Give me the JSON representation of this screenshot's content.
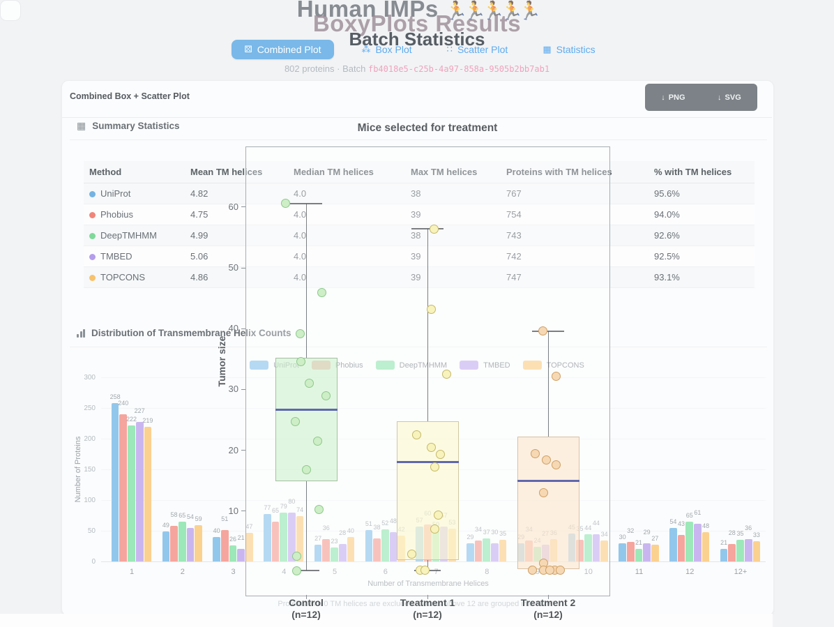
{
  "page": {
    "overlay_title": "Human IMPs",
    "runners": "🏃🏃🏃🏃🏃",
    "title": "BoxyPlots Results",
    "subtitle": "Batch Statistics"
  },
  "tabs": [
    {
      "label": "Combined Plot",
      "icon": "⚄",
      "active": true
    },
    {
      "label": "Box Plot",
      "icon": "⁂",
      "active": false
    },
    {
      "label": "Scatter Plot",
      "icon": "∷",
      "active": false
    },
    {
      "label": "Statistics",
      "icon": "▦",
      "active": false
    }
  ],
  "meta": {
    "proteins": "802 proteins",
    "dot": "·",
    "batch_label": "Batch",
    "batch_id": "fb4018e5-c25b-4a97-858a-9505b2bb7ab1"
  },
  "panel": {
    "title": "Combined Box + Scatter Plot",
    "buttons": [
      {
        "label": "PNG",
        "icon": "↓"
      },
      {
        "label": "SVG",
        "icon": "↓"
      }
    ]
  },
  "summary": {
    "heading": "Summary Statistics",
    "icon": "▦",
    "columns": [
      "Method",
      "Mean TM helices",
      "Median TM helices",
      "Max TM helices",
      "Proteins with TM helices",
      "% with TM helices"
    ],
    "rows": [
      {
        "method": "UniProt",
        "color": "#74b3e3",
        "mean": "4.82",
        "median": "4.0",
        "max": "38",
        "proteins": "767",
        "pct": "95.6%"
      },
      {
        "method": "Phobius",
        "color": "#f0857a",
        "mean": "4.75",
        "median": "4.0",
        "max": "39",
        "proteins": "754",
        "pct": "94.0%"
      },
      {
        "method": "DeepTMHMM",
        "color": "#7fd99a",
        "mean": "4.99",
        "median": "4.0",
        "max": "38",
        "proteins": "743",
        "pct": "92.6%"
      },
      {
        "method": "TMBED",
        "color": "#b49dea",
        "mean": "5.06",
        "median": "4.0",
        "max": "39",
        "proteins": "742",
        "pct": "92.5%"
      },
      {
        "method": "TOPCONS",
        "color": "#f7c26b",
        "mean": "4.86",
        "median": "4.0",
        "max": "39",
        "proteins": "747",
        "pct": "93.1%"
      }
    ]
  },
  "distribution": {
    "heading": "Distribution of Transmembrane Helix Counts"
  },
  "chart_data": [
    {
      "type": "bar",
      "title": "Distribution of Transmembrane Helix Counts",
      "xlabel": "Number of Transmembrane Helices",
      "ylabel": "Number of Proteins",
      "note": "Proteins with 0 TM helices are excluded. Counts above 12 are grouped into \"12+\".",
      "categories": [
        "1",
        "2",
        "3",
        "4",
        "5",
        "6",
        "7",
        "8",
        "9",
        "10",
        "11",
        "12",
        "12+"
      ],
      "yticks": [
        0,
        50,
        100,
        150,
        200,
        250,
        300
      ],
      "ylim": [
        0,
        300
      ],
      "legend_position": "top",
      "grid": true,
      "series": [
        {
          "name": "UniProt",
          "color": "#92c7ec",
          "values": [
            258,
            49,
            40,
            77,
            27,
            51,
            57,
            29,
            29,
            45,
            30,
            54,
            21
          ]
        },
        {
          "name": "Phobius",
          "color": "#f5a59d",
          "values": [
            240,
            58,
            51,
            65,
            36,
            38,
            60,
            34,
            34,
            35,
            32,
            43,
            28
          ]
        },
        {
          "name": "DeepTMHMM",
          "color": "#9ce8b8",
          "values": [
            222,
            65,
            26,
            79,
            23,
            52,
            50,
            37,
            24,
            44,
            21,
            65,
            35
          ]
        },
        {
          "name": "TMBED",
          "color": "#c9b6f0",
          "values": [
            227,
            54,
            21,
            80,
            28,
            48,
            57,
            30,
            27,
            44,
            29,
            61,
            36
          ]
        },
        {
          "name": "TOPCONS",
          "color": "#fbd190",
          "values": [
            219,
            59,
            47,
            74,
            40,
            42,
            53,
            35,
            36,
            34,
            27,
            48,
            33
          ]
        }
      ]
    },
    {
      "type": "box",
      "title": "Mice selected for treatment",
      "ylabel": "Tumor size",
      "yticks": [
        10,
        20,
        30,
        40,
        50,
        60
      ],
      "ylim": [
        0,
        70
      ],
      "median_color": "#5f67ad",
      "groups": [
        {
          "label": "Control",
          "sublabel": "(n=12)",
          "fill": "rgba(203,240,203,0.55)",
          "stroke": "#a3bfa3",
          "point_fill": "#cdeec6",
          "point_stroke": "#8cc98c",
          "whisker_high": 60.6,
          "q3": 35.2,
          "median": 26.7,
          "q1": 14.9,
          "whisker_low": 0.2,
          "cap_low": true,
          "points": [
            {
              "v": 60.6,
              "dx": -30
            },
            {
              "v": 46.0,
              "dx": 22
            },
            {
              "v": 39.2,
              "dx": -9
            },
            {
              "v": 34.6,
              "dx": -8
            },
            {
              "v": 31.0,
              "dx": 4
            },
            {
              "v": 29.0,
              "dx": 28
            },
            {
              "v": 24.7,
              "dx": -16
            },
            {
              "v": 21.5,
              "dx": 16
            },
            {
              "v": 16.8,
              "dx": 0
            },
            {
              "v": 10.3,
              "dx": 18
            },
            {
              "v": 2.6,
              "dx": -14
            },
            {
              "v": 0.2,
              "dx": -14
            }
          ]
        },
        {
          "label": "Treatment 1",
          "sublabel": "(n=12)",
          "fill": "rgba(252,248,205,0.58)",
          "stroke": "#cfc9a0",
          "point_fill": "#f8f2bd",
          "point_stroke": "#c3b968",
          "whisker_high": 56.4,
          "q3": 24.8,
          "median": 18.1,
          "q1": 2.0,
          "whisker_low": 0.2,
          "cap_low": true,
          "points": [
            {
              "v": 56.4,
              "dx": 9
            },
            {
              "v": 43.2,
              "dx": 5
            },
            {
              "v": 32.5,
              "dx": 27
            },
            {
              "v": 22.5,
              "dx": -16
            },
            {
              "v": 20.5,
              "dx": 5
            },
            {
              "v": 19.3,
              "dx": 18
            },
            {
              "v": 17.3,
              "dx": 10
            },
            {
              "v": 9.4,
              "dx": 15
            },
            {
              "v": 7.0,
              "dx": 10
            },
            {
              "v": 2.9,
              "dx": -23
            },
            {
              "v": 0.3,
              "dx": -11
            },
            {
              "v": 0.3,
              "dx": -4
            }
          ]
        },
        {
          "label": "Treatment 2",
          "sublabel": "(n=12)",
          "fill": "rgba(252,229,203,0.58)",
          "stroke": "#d9c0a5",
          "point_fill": "#f6d8b4",
          "point_stroke": "#cf9f63",
          "whisker_high": 39.6,
          "q3": 22.2,
          "median": 15.0,
          "q1": 0.4,
          "whisker_low": 0.4,
          "cap_low": false,
          "points": [
            {
              "v": 39.6,
              "dx": -8
            },
            {
              "v": 32.2,
              "dx": 11
            },
            {
              "v": 19.4,
              "dx": -19
            },
            {
              "v": 18.4,
              "dx": -3
            },
            {
              "v": 17.6,
              "dx": 11
            },
            {
              "v": 13.0,
              "dx": -7
            },
            {
              "v": 1.4,
              "dx": -7
            },
            {
              "v": 0.3,
              "dx": -23
            },
            {
              "v": 0.3,
              "dx": -7
            },
            {
              "v": 0.3,
              "dx": 9
            },
            {
              "v": 0.3,
              "dx": 17
            },
            {
              "v": 0.3,
              "dx": 2
            }
          ]
        }
      ]
    }
  ]
}
